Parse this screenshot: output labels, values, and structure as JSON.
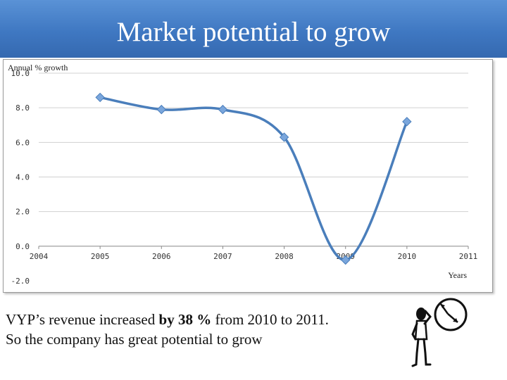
{
  "title": "Market potential to grow",
  "caption": {
    "line1_prefix": "VYP’s revenue increased ",
    "line1_bold": "by 38 %",
    "line1_suffix": " from 2010 to 2011.",
    "line2": "So the company has great potential to grow"
  },
  "icons": {
    "figure": "person-looking-at-clock-icon"
  },
  "colors": {
    "title_bar": "#3f78c2",
    "series_line": "#4a7ebb",
    "marker": "#7aa6dc"
  },
  "chart_data": {
    "type": "line",
    "ylabel": "Annual % growth",
    "xlabel": "Years",
    "x": [
      2005,
      2006,
      2007,
      2008,
      2009,
      2010
    ],
    "values": [
      8.6,
      7.9,
      7.9,
      6.3,
      -0.8,
      7.2
    ],
    "xlim": [
      2004,
      2011
    ],
    "ylim": [
      -2.0,
      10.0
    ],
    "x_ticks": [
      "2004",
      "2005",
      "2006",
      "2007",
      "2008",
      "2009",
      "2010",
      "2011"
    ],
    "y_ticks": [
      "-2.0",
      "0.0",
      "2.0",
      "4.0",
      "6.0",
      "8.0",
      "10.0"
    ],
    "smooth": true,
    "grid": "horizontal"
  }
}
